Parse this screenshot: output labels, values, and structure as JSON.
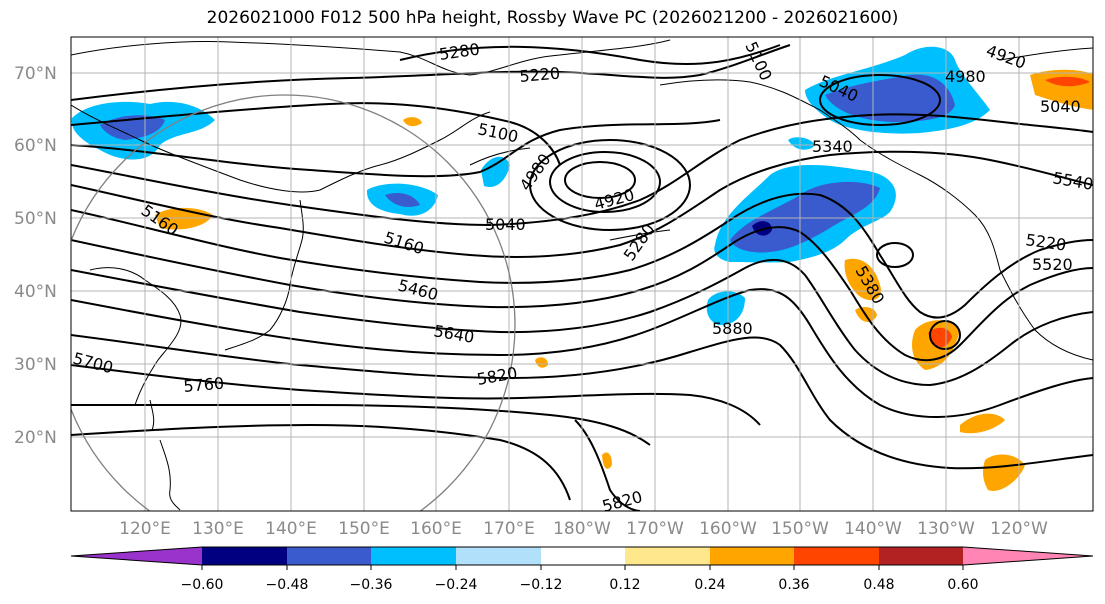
{
  "title": "2026021000 F012 500 hPa height, Rossby Wave PC (2026021200 - 2026021600)",
  "latitude_labels": [
    "70°N",
    "60°N",
    "50°N",
    "40°N",
    "30°N",
    "20°N"
  ],
  "longitude_labels": [
    "120°E",
    "130°E",
    "140°E",
    "150°E",
    "160°E",
    "170°E",
    "180°W",
    "170°W",
    "160°W",
    "150°W",
    "140°W",
    "130°W",
    "120°W"
  ],
  "contour_labels": [
    "5280",
    "5220",
    "5100",
    "5040",
    "4920",
    "4980",
    "5160",
    "5040",
    "5100",
    "4980",
    "4920",
    "5040",
    "5340",
    "5220",
    "5160",
    "5460",
    "5640",
    "5280",
    "5380",
    "5880",
    "5700",
    "5760",
    "5820",
    "5820",
    "5540",
    "5520"
  ],
  "colorbar": {
    "ticks": [
      "−0.60",
      "−0.48",
      "−0.36",
      "−0.24",
      "−0.12",
      "0.12",
      "0.24",
      "0.36",
      "0.48",
      "0.60"
    ],
    "colors": [
      "#9933cc",
      "#000080",
      "#3a5bcd",
      "#00bfff",
      "#b0e0fa",
      "#ffffff",
      "#ffe88c",
      "#ffa500",
      "#ff4500",
      "#b22222",
      "#ff85b4"
    ]
  },
  "colors": {
    "grid": "#b4b4b4",
    "coast": "#000000",
    "contour": "#000000",
    "circle": "#808080"
  }
}
